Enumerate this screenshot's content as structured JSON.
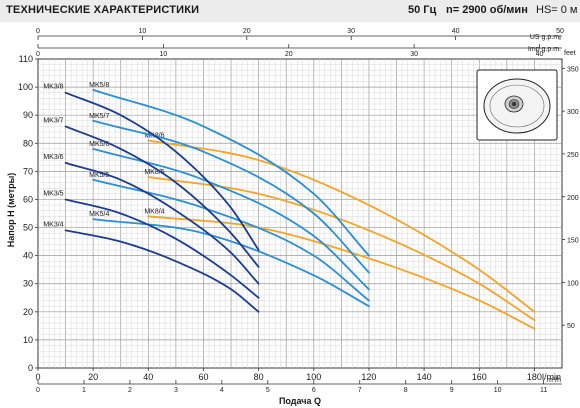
{
  "header": {
    "title": "ТЕХНИЧЕСКИЕ ХАРАКТЕРИСТИКИ",
    "frequency": "50 Гц",
    "speed": "n= 2900 об/мин",
    "hs": "HS= 0 м"
  },
  "chart_data": {
    "type": "line",
    "xlabel": "Подача Q",
    "ylabel": "Напор H (метры)",
    "x_unit": "l/min",
    "x_unit_m3h": "m³/h",
    "x_unit_us": "US g.p.m.",
    "x_unit_imp": "Imp g.p.m.",
    "y_unit_right": "feet",
    "xlim": [
      0,
      190
    ],
    "ylim": [
      0,
      110
    ],
    "x_ticks": [
      0,
      20,
      40,
      60,
      80,
      100,
      120,
      140,
      160,
      180
    ],
    "y_ticks": [
      0,
      10,
      20,
      30,
      40,
      50,
      60,
      70,
      80,
      90,
      100,
      110
    ],
    "m3h_ticks": [
      0,
      1,
      2,
      3,
      4,
      5,
      6,
      7,
      8,
      9,
      10,
      11
    ],
    "us_gpm_ticks": [
      0,
      10,
      20,
      30,
      40,
      50
    ],
    "imp_gpm_ticks": [
      0,
      10,
      20,
      30,
      40
    ],
    "feet_ticks": [
      50,
      100,
      150,
      200,
      250,
      300,
      350
    ],
    "grid": true,
    "colors": {
      "MK3": "#1a3d8f",
      "MK5": "#2b8fd1",
      "MK8": "#f3a52b"
    },
    "series": [
      {
        "name": "MK3/8",
        "group": "MK3",
        "points": [
          [
            10,
            98
          ],
          [
            30,
            90
          ],
          [
            50,
            77
          ],
          [
            70,
            57
          ],
          [
            80,
            42
          ]
        ]
      },
      {
        "name": "MK3/7",
        "group": "MK3",
        "points": [
          [
            10,
            86
          ],
          [
            30,
            78
          ],
          [
            50,
            66
          ],
          [
            70,
            48
          ],
          [
            80,
            36
          ]
        ]
      },
      {
        "name": "MK3/6",
        "group": "MK3",
        "points": [
          [
            10,
            73
          ],
          [
            30,
            67
          ],
          [
            50,
            56
          ],
          [
            70,
            41
          ],
          [
            80,
            30
          ]
        ]
      },
      {
        "name": "MK3/5",
        "group": "MK3",
        "points": [
          [
            10,
            60
          ],
          [
            30,
            55
          ],
          [
            50,
            46
          ],
          [
            70,
            33
          ],
          [
            80,
            25
          ]
        ]
      },
      {
        "name": "MK3/4",
        "group": "MK3",
        "points": [
          [
            10,
            49
          ],
          [
            30,
            45
          ],
          [
            50,
            38
          ],
          [
            70,
            28
          ],
          [
            80,
            20
          ]
        ]
      },
      {
        "name": "MK5/8",
        "group": "MK5",
        "points": [
          [
            20,
            99
          ],
          [
            60,
            86
          ],
          [
            100,
            62
          ],
          [
            120,
            40
          ]
        ]
      },
      {
        "name": "MK5/7",
        "group": "MK5",
        "points": [
          [
            20,
            88
          ],
          [
            60,
            77
          ],
          [
            100,
            55
          ],
          [
            120,
            34
          ]
        ]
      },
      {
        "name": "MK5/6",
        "group": "MK5",
        "points": [
          [
            20,
            78
          ],
          [
            60,
            67
          ],
          [
            100,
            47
          ],
          [
            120,
            28
          ]
        ]
      },
      {
        "name": "MK5/5",
        "group": "MK5",
        "points": [
          [
            20,
            67
          ],
          [
            60,
            57
          ],
          [
            100,
            40
          ],
          [
            120,
            24
          ]
        ]
      },
      {
        "name": "MK5/4",
        "group": "MK5",
        "points": [
          [
            20,
            53
          ],
          [
            60,
            48
          ],
          [
            100,
            33
          ],
          [
            120,
            22
          ]
        ]
      },
      {
        "name": "MK8/6",
        "group": "MK8",
        "points": [
          [
            40,
            81
          ],
          [
            80,
            74
          ],
          [
            120,
            58
          ],
          [
            160,
            35
          ],
          [
            180,
            20
          ]
        ]
      },
      {
        "name": "MK8/5",
        "group": "MK8",
        "points": [
          [
            40,
            68
          ],
          [
            80,
            62
          ],
          [
            120,
            49
          ],
          [
            160,
            30
          ],
          [
            180,
            17
          ]
        ]
      },
      {
        "name": "MK8/4",
        "group": "MK8",
        "points": [
          [
            40,
            54
          ],
          [
            80,
            50
          ],
          [
            120,
            39
          ],
          [
            160,
            24
          ],
          [
            180,
            14
          ]
        ]
      }
    ]
  }
}
